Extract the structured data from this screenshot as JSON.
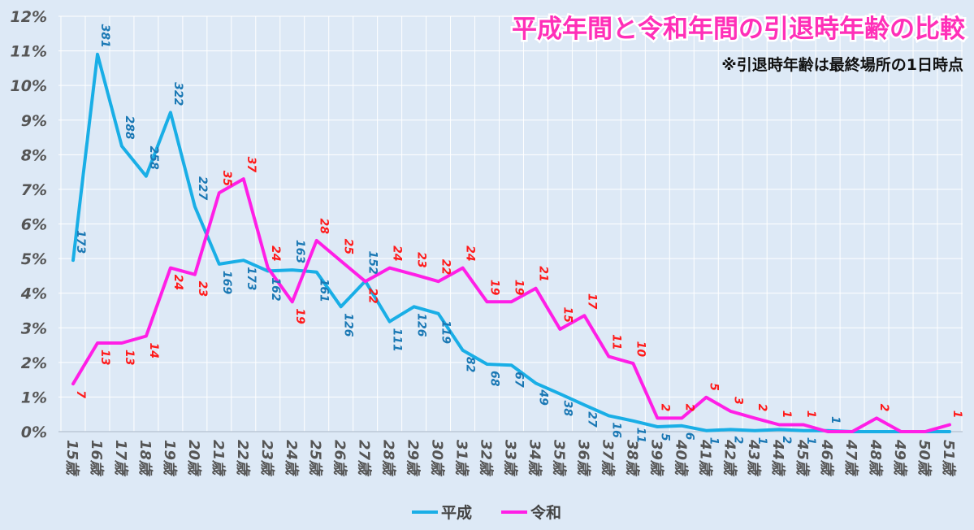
{
  "chart_data": {
    "type": "line",
    "title": "平成年間と令和年間の引退時年齢の比較",
    "subtitle": "※引退時年齢は最終場所の1日時点",
    "xlabel": "",
    "ylabel": "",
    "ylim": [
      0,
      12
    ],
    "yticks": [
      "0%",
      "1%",
      "2%",
      "3%",
      "4%",
      "5%",
      "6%",
      "7%",
      "8%",
      "9%",
      "10%",
      "11%",
      "12%"
    ],
    "categories": [
      "15歳",
      "16歳",
      "17歳",
      "18歳",
      "19歳",
      "20歳",
      "21歳",
      "22歳",
      "23歳",
      "24歳",
      "25歳",
      "26歳",
      "27歳",
      "28歳",
      "29歳",
      "30歳",
      "31歳",
      "32歳",
      "33歳",
      "34歳",
      "35歳",
      "36歳",
      "37歳",
      "38歳",
      "39歳",
      "40歳",
      "41歳",
      "42歳",
      "43歳",
      "44歳",
      "45歳",
      "46歳",
      "47歳",
      "48歳",
      "49歳",
      "50歳",
      "51歳"
    ],
    "grid": true,
    "legend_position": "bottom",
    "series": [
      {
        "name": "平成",
        "color": "#19aee6",
        "values": [
          4.95,
          10.9,
          8.25,
          7.38,
          9.22,
          6.5,
          4.84,
          4.95,
          4.64,
          4.67,
          4.61,
          3.61,
          4.35,
          3.18,
          3.61,
          3.41,
          2.35,
          1.95,
          1.92,
          1.4,
          1.09,
          0.77,
          0.46,
          0.31,
          0.14,
          0.17,
          0.03,
          0.06,
          0.03,
          0.06,
          0.03,
          0.03,
          0.0,
          0.0,
          0.0,
          0.0,
          0.0
        ],
        "labels": [
          "173",
          "381",
          "288",
          "258",
          "322",
          "227",
          "169",
          "173",
          "162",
          "163",
          "161",
          "126",
          "152",
          "111",
          "126",
          "119",
          "82",
          "68",
          "67",
          "49",
          "38",
          "27",
          "16",
          "11",
          "5",
          "6",
          "1",
          "2",
          "1",
          "2",
          "1",
          "1",
          "",
          "",
          "",
          "",
          ""
        ]
      },
      {
        "name": "令和",
        "color": "#ff1ee6",
        "values": [
          1.38,
          2.56,
          2.56,
          2.76,
          4.73,
          4.54,
          6.9,
          7.3,
          4.73,
          3.75,
          5.52,
          4.93,
          4.34,
          4.73,
          4.54,
          4.34,
          4.73,
          3.75,
          3.75,
          4.14,
          2.96,
          3.35,
          2.17,
          1.97,
          0.39,
          0.39,
          0.99,
          0.59,
          0.39,
          0.2,
          0.2,
          0.0,
          0.0,
          0.39,
          0.0,
          0.0,
          0.2
        ],
        "labels": [
          "7",
          "13",
          "13",
          "14",
          "24",
          "23",
          "35",
          "37",
          "24",
          "19",
          "28",
          "25",
          "22",
          "24",
          "23",
          "22",
          "24",
          "19",
          "19",
          "21",
          "15",
          "17",
          "11",
          "10",
          "2",
          "2",
          "5",
          "3",
          "2",
          "1",
          "1",
          "",
          "",
          "2",
          "",
          "",
          "1"
        ]
      }
    ]
  }
}
